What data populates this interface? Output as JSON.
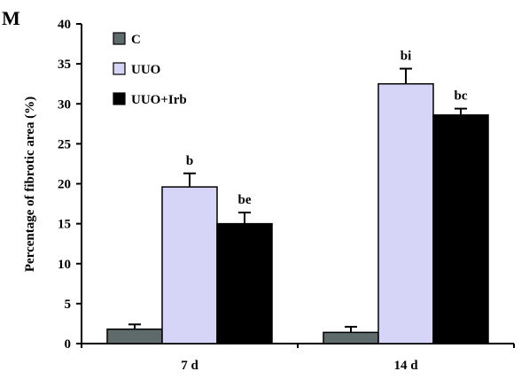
{
  "panel_label": "M",
  "colors": {
    "C": "#5f6b6b",
    "UUO": "#d6d4f7",
    "UUO+Irb": "#000000",
    "axis": "#000000"
  },
  "chart_data": {
    "type": "bar",
    "title": "",
    "xlabel": "",
    "ylabel": "Percentage of fibrotic area (%)",
    "ylim": [
      0,
      40
    ],
    "yticks": [
      0,
      5,
      10,
      15,
      20,
      25,
      30,
      35,
      40
    ],
    "categories": [
      "7 d",
      "14 d"
    ],
    "legend_position": "top-left",
    "grid": false,
    "series": [
      {
        "name": "C",
        "values": [
          1.8,
          1.4
        ],
        "errors": [
          0.6,
          0.7
        ],
        "labels": [
          "",
          ""
        ]
      },
      {
        "name": "UUO",
        "values": [
          19.6,
          32.5
        ],
        "errors": [
          1.7,
          1.9
        ],
        "labels": [
          "b",
          "bi"
        ]
      },
      {
        "name": "UUO+Irb",
        "values": [
          15.0,
          28.6
        ],
        "errors": [
          1.4,
          0.8
        ],
        "labels": [
          "be",
          "bc"
        ]
      }
    ]
  }
}
